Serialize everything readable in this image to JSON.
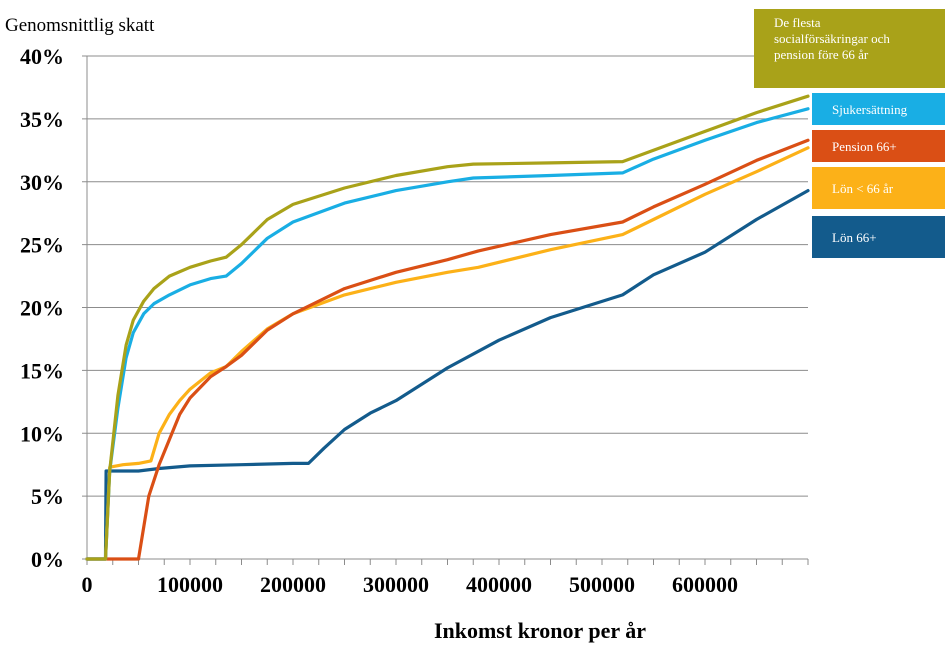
{
  "chart_data": {
    "type": "line",
    "title": "",
    "ylabel": "Genomsnittlig skatt",
    "xlabel": "Inkomst kronor per år",
    "xlim": [
      0,
      700000
    ],
    "ylim": [
      0,
      40
    ],
    "x_ticks": [
      0,
      100000,
      200000,
      300000,
      400000,
      500000,
      600000
    ],
    "x_tick_labels": [
      "0",
      "100000",
      "200000",
      "300000",
      "400000",
      "500000",
      "600000"
    ],
    "y_ticks": [
      0,
      5,
      10,
      15,
      20,
      25,
      30,
      35,
      40
    ],
    "y_tick_labels": [
      "0%",
      "5%",
      "10%",
      "15%",
      "20%",
      "25%",
      "30%",
      "35%",
      "40%"
    ],
    "grid": "horizontal",
    "legend_position": "right",
    "series": [
      {
        "name": "De flesta socialförsäkringar och pension före 66 år",
        "color": "#A9A219",
        "x": [
          0,
          18000,
          22000,
          30000,
          38000,
          45000,
          55000,
          65000,
          80000,
          100000,
          120000,
          135000,
          150000,
          175000,
          200000,
          250000,
          300000,
          350000,
          375000,
          450000,
          520000,
          550000,
          600000,
          650000,
          700000
        ],
        "y": [
          0,
          0,
          7,
          13,
          17,
          19,
          20.5,
          21.5,
          22.5,
          23.2,
          23.7,
          24,
          25,
          27,
          28.2,
          29.5,
          30.5,
          31.2,
          31.4,
          31.5,
          31.6,
          32.5,
          34,
          35.5,
          36.8
        ]
      },
      {
        "name": "Sjukersättning",
        "color": "#19AEE4",
        "x": [
          0,
          18000,
          22000,
          30000,
          38000,
          45000,
          55000,
          65000,
          80000,
          100000,
          120000,
          135000,
          150000,
          175000,
          200000,
          250000,
          300000,
          350000,
          375000,
          450000,
          520000,
          550000,
          600000,
          650000,
          700000
        ],
        "y": [
          0,
          0,
          7,
          12,
          16,
          18,
          19.5,
          20.3,
          21,
          21.8,
          22.3,
          22.5,
          23.5,
          25.5,
          26.8,
          28.3,
          29.3,
          30,
          30.3,
          30.5,
          30.7,
          31.8,
          33.3,
          34.7,
          35.8
        ]
      },
      {
        "name": "Pension 66+",
        "color": "#DA4F15",
        "x": [
          0,
          35000,
          50000,
          60000,
          70000,
          80000,
          90000,
          100000,
          120000,
          135000,
          150000,
          175000,
          200000,
          250000,
          300000,
          350000,
          380000,
          450000,
          520000,
          550000,
          600000,
          650000,
          700000
        ],
        "y": [
          0,
          0,
          0,
          5,
          7.5,
          9.5,
          11.5,
          12.8,
          14.5,
          15.3,
          16.2,
          18.2,
          19.5,
          21.5,
          22.8,
          23.8,
          24.5,
          25.8,
          26.8,
          28,
          29.8,
          31.7,
          33.3
        ]
      },
      {
        "name": "Lön < 66 år",
        "color": "#FCB118",
        "x": [
          18000,
          22000,
          35000,
          50000,
          62000,
          70000,
          80000,
          90000,
          100000,
          120000,
          135000,
          150000,
          175000,
          200000,
          250000,
          300000,
          350000,
          380000,
          450000,
          520000,
          550000,
          600000,
          650000,
          700000
        ],
        "y": [
          0,
          7.3,
          7.5,
          7.6,
          7.8,
          10,
          11.5,
          12.6,
          13.5,
          14.8,
          15.3,
          16.5,
          18.3,
          19.5,
          21,
          22,
          22.8,
          23.2,
          24.6,
          25.8,
          27,
          29,
          30.8,
          32.7
        ]
      },
      {
        "name": "Lön 66+",
        "color": "#135B8C",
        "x": [
          0,
          18000,
          18500,
          30000,
          50000,
          70000,
          100000,
          150000,
          200000,
          215000,
          230000,
          250000,
          275000,
          300000,
          350000,
          400000,
          450000,
          520000,
          550000,
          600000,
          650000,
          700000
        ],
        "y": [
          0,
          0,
          7.0,
          7.0,
          7.0,
          7.2,
          7.4,
          7.5,
          7.6,
          7.6,
          8.8,
          10.3,
          11.6,
          12.6,
          15.2,
          17.4,
          19.2,
          21.0,
          22.6,
          24.4,
          27.0,
          29.3
        ]
      }
    ]
  }
}
